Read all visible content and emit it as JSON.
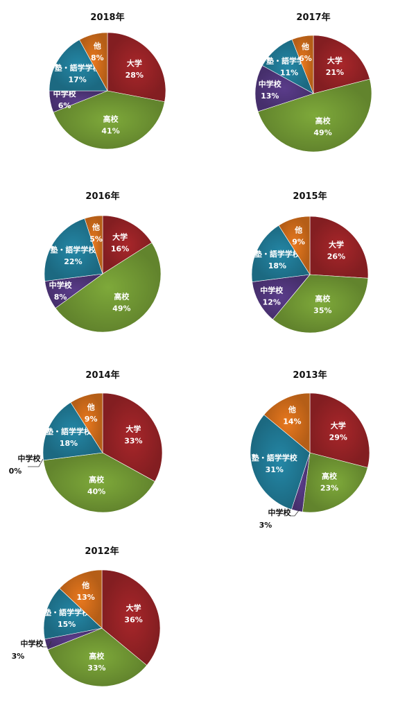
{
  "chart_data": [
    {
      "type": "pie",
      "title": "2018年",
      "slices": [
        {
          "label": "大学",
          "value": 28,
          "value_text": "28%",
          "color": "#a8262a"
        },
        {
          "label": "高校",
          "value": 41,
          "value_text": "41%",
          "color": "#7ea93a"
        },
        {
          "label": "中学校",
          "value": 6,
          "value_text": "6%",
          "color": "#5a3c8a"
        },
        {
          "label": "塾・語学学校",
          "value": 17,
          "value_text": "17%",
          "color": "#2487a6"
        },
        {
          "label": "他",
          "value": 8,
          "value_text": "8%",
          "color": "#e8781e"
        }
      ]
    },
    {
      "type": "pie",
      "title": "2017年",
      "slices": [
        {
          "label": "大学",
          "value": 21,
          "value_text": "21%",
          "color": "#a8262a"
        },
        {
          "label": "高校",
          "value": 49,
          "value_text": "49%",
          "color": "#7ea93a"
        },
        {
          "label": "中学校",
          "value": 13,
          "value_text": "13%",
          "color": "#5a3c8a"
        },
        {
          "label": "塾・語学学校",
          "value": 11,
          "value_text": "11%",
          "color": "#2487a6"
        },
        {
          "label": "他",
          "value": 6,
          "value_text": "6%",
          "color": "#e8781e"
        }
      ]
    },
    {
      "type": "pie",
      "title": "2016年",
      "slices": [
        {
          "label": "大学",
          "value": 16,
          "value_text": "16%",
          "color": "#a8262a"
        },
        {
          "label": "高校",
          "value": 49,
          "value_text": "49%",
          "color": "#7ea93a"
        },
        {
          "label": "中学校",
          "value": 8,
          "value_text": "8%",
          "color": "#5a3c8a"
        },
        {
          "label": "塾・語学学校",
          "value": 22,
          "value_text": "22%",
          "color": "#2487a6"
        },
        {
          "label": "他",
          "value": 5,
          "value_text": "5%",
          "color": "#e8781e"
        }
      ]
    },
    {
      "type": "pie",
      "title": "2015年",
      "slices": [
        {
          "label": "大学",
          "value": 26,
          "value_text": "26%",
          "color": "#a8262a"
        },
        {
          "label": "高校",
          "value": 35,
          "value_text": "35%",
          "color": "#7ea93a"
        },
        {
          "label": "中学校",
          "value": 12,
          "value_text": "12%",
          "color": "#5a3c8a"
        },
        {
          "label": "塾・語学学校",
          "value": 18,
          "value_text": "18%",
          "color": "#2487a6"
        },
        {
          "label": "他",
          "value": 9,
          "value_text": "9%",
          "color": "#e8781e"
        }
      ]
    },
    {
      "type": "pie",
      "title": "2014年",
      "slices": [
        {
          "label": "大学",
          "value": 33,
          "value_text": "33%",
          "color": "#a8262a"
        },
        {
          "label": "高校",
          "value": 40,
          "value_text": "40%",
          "color": "#7ea93a"
        },
        {
          "label": "中学校",
          "value": 0,
          "value_text": "0%",
          "color": "#5a3c8a"
        },
        {
          "label": "塾・語学学校",
          "value": 18,
          "value_text": "18%",
          "color": "#2487a6"
        },
        {
          "label": "他",
          "value": 9,
          "value_text": "9%",
          "color": "#e8781e"
        }
      ]
    },
    {
      "type": "pie",
      "title": "2013年",
      "slices": [
        {
          "label": "大学",
          "value": 29,
          "value_text": "29%",
          "color": "#a8262a"
        },
        {
          "label": "高校",
          "value": 23,
          "value_text": "23%",
          "color": "#7ea93a"
        },
        {
          "label": "中学校",
          "value": 3,
          "value_text": "3%",
          "color": "#5a3c8a"
        },
        {
          "label": "塾・語学学校",
          "value": 31,
          "value_text": "31%",
          "color": "#2487a6"
        },
        {
          "label": "他",
          "value": 14,
          "value_text": "14%",
          "color": "#e8781e"
        }
      ]
    },
    {
      "type": "pie",
      "title": "2012年",
      "slices": [
        {
          "label": "大学",
          "value": 36,
          "value_text": "36%",
          "color": "#a8262a"
        },
        {
          "label": "高校",
          "value": 33,
          "value_text": "33%",
          "color": "#7ea93a"
        },
        {
          "label": "中学校",
          "value": 3,
          "value_text": "3%",
          "color": "#5a3c8a"
        },
        {
          "label": "塾・語学学校",
          "value": 15,
          "value_text": "15%",
          "color": "#2487a6"
        },
        {
          "label": "他",
          "value": 13,
          "value_text": "13%",
          "color": "#e8781e"
        }
      ]
    }
  ]
}
